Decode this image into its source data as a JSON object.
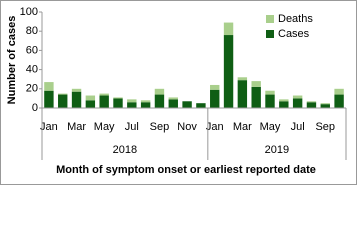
{
  "chart_data": {
    "type": "stacked-bar",
    "categories": [
      "Jan",
      null,
      "Mar",
      null,
      "May",
      null,
      "Jul",
      null,
      "Sep",
      null,
      "Nov",
      null,
      "Jan",
      null,
      "Mar",
      null,
      "May",
      null,
      "Jul",
      null,
      "Sep",
      null
    ],
    "year_labels": [
      "2018",
      "2019"
    ],
    "series": [
      {
        "name": "Cases",
        "color": "#0f5e14",
        "values": [
          18,
          14,
          17,
          8,
          13,
          10,
          6,
          6,
          14,
          9,
          7,
          5,
          19,
          76,
          29,
          22,
          14,
          7,
          10,
          6,
          4,
          14
        ]
      },
      {
        "name": "Deaths",
        "color": "#a9cf8c",
        "values": [
          9,
          1,
          3,
          5,
          2,
          1,
          3,
          2,
          6,
          2,
          0,
          0,
          5,
          13,
          3,
          6,
          4,
          2,
          3,
          1,
          1,
          6
        ]
      }
    ],
    "y_label": "Number of cases",
    "x_label": "Month  of symptom onset or earliest reported date",
    "ylim": [
      0,
      100
    ],
    "yticks": [
      0,
      20,
      40,
      60,
      80,
      100
    ]
  }
}
